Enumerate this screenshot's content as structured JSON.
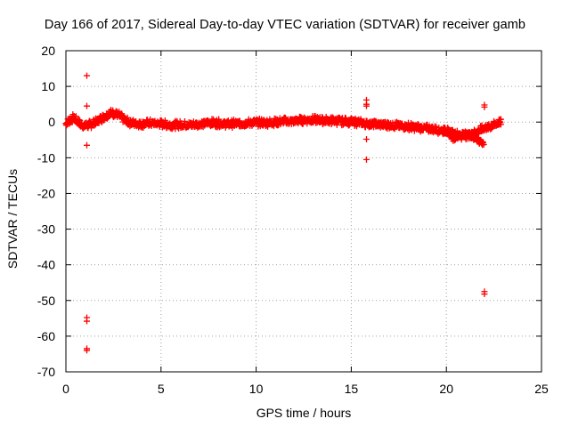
{
  "chart_data": {
    "type": "scatter",
    "title": "Day 166 of 2017, Sidereal Day-to-day VTEC variation (SDTVAR) for receiver gamb",
    "xlabel": "GPS time / hours",
    "ylabel": "SDTVAR / TECUs",
    "xlim": [
      0,
      25
    ],
    "ylim": [
      -70,
      20
    ],
    "xticks": [
      0,
      5,
      10,
      15,
      20,
      25
    ],
    "yticks": [
      20,
      10,
      0,
      -10,
      -20,
      -30,
      -40,
      -50,
      -60,
      -70
    ],
    "grid": true,
    "marker": "+",
    "series_color": "#ff0000",
    "series": [
      {
        "name": "SDTVAR",
        "trend": [
          [
            0.0,
            -0.5
          ],
          [
            0.2,
            0.5
          ],
          [
            0.4,
            1.2
          ],
          [
            0.6,
            0.2
          ],
          [
            0.8,
            -0.8
          ],
          [
            1.0,
            -1.0
          ],
          [
            1.2,
            -0.8
          ],
          [
            1.4,
            -0.5
          ],
          [
            1.6,
            0.0
          ],
          [
            1.8,
            0.8
          ],
          [
            2.0,
            1.5
          ],
          [
            2.2,
            2.2
          ],
          [
            2.4,
            2.5
          ],
          [
            2.6,
            2.2
          ],
          [
            2.8,
            1.8
          ],
          [
            3.0,
            1.0
          ],
          [
            3.2,
            0.2
          ],
          [
            3.5,
            -0.3
          ],
          [
            4.0,
            -0.5
          ],
          [
            4.5,
            -0.3
          ],
          [
            5.0,
            -0.5
          ],
          [
            5.5,
            -0.8
          ],
          [
            6.0,
            -0.8
          ],
          [
            6.5,
            -0.8
          ],
          [
            7.0,
            -0.6
          ],
          [
            7.5,
            -0.2
          ],
          [
            8.0,
            -0.3
          ],
          [
            8.5,
            -0.5
          ],
          [
            9.0,
            -0.4
          ],
          [
            9.5,
            -0.3
          ],
          [
            10.0,
            -0.1
          ],
          [
            10.5,
            -0.2
          ],
          [
            11.0,
            0.0
          ],
          [
            11.5,
            0.2
          ],
          [
            12.0,
            0.3
          ],
          [
            12.5,
            0.6
          ],
          [
            13.0,
            0.6
          ],
          [
            13.5,
            0.5
          ],
          [
            14.0,
            0.4
          ],
          [
            14.5,
            0.2
          ],
          [
            15.0,
            0.1
          ],
          [
            15.5,
            -0.2
          ],
          [
            16.0,
            -0.5
          ],
          [
            16.5,
            -0.6
          ],
          [
            17.0,
            -0.8
          ],
          [
            17.5,
            -1.0
          ],
          [
            18.0,
            -1.2
          ],
          [
            18.5,
            -1.5
          ],
          [
            19.0,
            -1.8
          ],
          [
            19.5,
            -2.2
          ],
          [
            20.0,
            -2.5
          ],
          [
            20.3,
            -3.0
          ],
          [
            20.6,
            -3.5
          ],
          [
            20.9,
            -4.0
          ],
          [
            21.2,
            -3.5
          ],
          [
            21.5,
            -3.0
          ],
          [
            21.8,
            -2.2
          ],
          [
            22.1,
            -1.5
          ],
          [
            22.4,
            -1.0
          ],
          [
            22.7,
            -0.3
          ],
          [
            22.9,
            0.2
          ]
        ],
        "lower_branch": [
          [
            19.9,
            -2.0
          ],
          [
            20.2,
            -3.5
          ],
          [
            20.4,
            -4.8
          ],
          [
            20.6,
            -4.0
          ],
          [
            21.0,
            -2.8
          ],
          [
            21.4,
            -4.2
          ],
          [
            21.7,
            -5.2
          ],
          [
            22.0,
            -6.5
          ]
        ],
        "outliers": [
          [
            1.1,
            13
          ],
          [
            1.1,
            4.5
          ],
          [
            1.1,
            -6.5
          ],
          [
            1.1,
            -54.8
          ],
          [
            1.1,
            -55.8
          ],
          [
            1.1,
            -63.5
          ],
          [
            1.1,
            -64.0
          ],
          [
            15.8,
            6.2
          ],
          [
            15.8,
            5.0
          ],
          [
            15.8,
            4.5
          ],
          [
            15.8,
            -4.8
          ],
          [
            15.8,
            -10.5
          ],
          [
            22.0,
            4.8
          ],
          [
            22.0,
            4.2
          ],
          [
            22.0,
            -47.5
          ],
          [
            22.0,
            -48.2
          ]
        ]
      }
    ]
  }
}
